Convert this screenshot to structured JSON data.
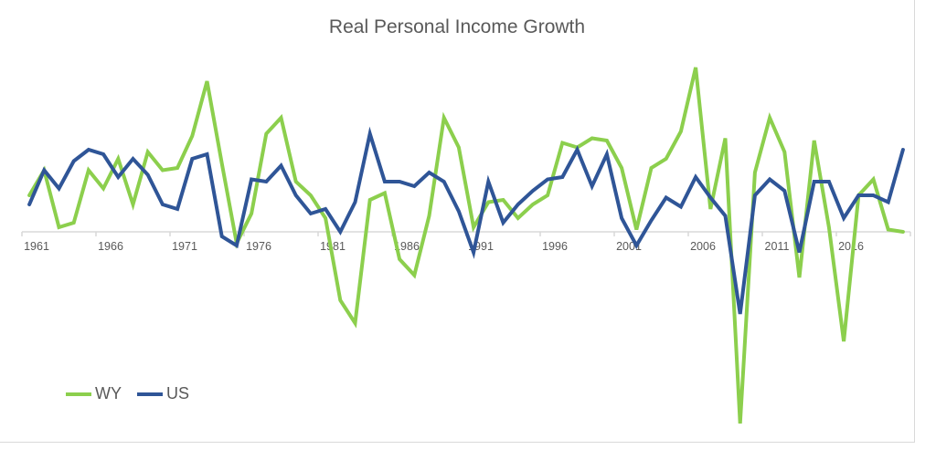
{
  "chart_data": {
    "type": "line",
    "title": "Real Personal Income Growth",
    "xlabel": "",
    "ylabel": "",
    "x": [
      1961,
      1962,
      1963,
      1964,
      1965,
      1966,
      1967,
      1968,
      1969,
      1970,
      1971,
      1972,
      1973,
      1974,
      1975,
      1976,
      1977,
      1978,
      1979,
      1980,
      1981,
      1982,
      1983,
      1984,
      1985,
      1986,
      1987,
      1988,
      1989,
      1990,
      1991,
      1992,
      1993,
      1994,
      1995,
      1996,
      1997,
      1998,
      1999,
      2000,
      2001,
      2002,
      2003,
      2004,
      2005,
      2006,
      2007,
      2008,
      2009,
      2010,
      2011,
      2012,
      2013,
      2014,
      2015,
      2016,
      2017,
      2018,
      2019,
      2020
    ],
    "x_tick_labels": [
      "1961",
      "1966",
      "1971",
      "1976",
      "1981",
      "1986",
      "1991",
      "1996",
      "2001",
      "2006",
      "2011",
      "2016"
    ],
    "ylim": [
      -9,
      8
    ],
    "y_axis_labels_shown": false,
    "grid": false,
    "legend_position": "bottom-left",
    "series": [
      {
        "name": "WY",
        "color": "#8ccf4d",
        "values": [
          1.6,
          2.7,
          0.2,
          0.4,
          2.7,
          1.9,
          3.2,
          1.2,
          3.5,
          2.7,
          2.8,
          4.2,
          6.6,
          3.0,
          -0.5,
          0.8,
          4.3,
          5.0,
          2.2,
          1.6,
          0.6,
          -3.0,
          -4.0,
          1.4,
          1.7,
          -1.2,
          -1.9,
          0.7,
          5.0,
          3.7,
          0.2,
          1.3,
          1.4,
          0.6,
          1.2,
          1.6,
          3.9,
          3.7,
          4.1,
          4.0,
          2.8,
          0.1,
          2.8,
          3.2,
          4.4,
          7.2,
          1.0,
          4.1,
          -8.4,
          2.6,
          5.0,
          3.5,
          -2.0,
          4.0,
          0.2,
          -4.8,
          1.6,
          2.3,
          0.1,
          0.0
        ]
      },
      {
        "name": "US",
        "color": "#2f5597",
        "values": [
          1.2,
          2.7,
          1.9,
          3.1,
          3.6,
          3.4,
          2.4,
          3.2,
          2.5,
          1.2,
          1.0,
          3.2,
          3.4,
          -0.2,
          -0.6,
          2.3,
          2.2,
          2.9,
          1.6,
          0.8,
          1.0,
          0.0,
          1.3,
          4.3,
          2.2,
          2.2,
          2.0,
          2.6,
          2.2,
          0.9,
          -0.9,
          2.2,
          0.4,
          1.2,
          1.8,
          2.3,
          2.4,
          3.6,
          2.0,
          3.4,
          0.6,
          -0.6,
          0.5,
          1.5,
          1.1,
          2.4,
          1.5,
          0.7,
          -3.6,
          1.6,
          2.3,
          1.8,
          -0.9,
          2.2,
          2.2,
          0.6,
          1.6,
          1.6,
          1.3,
          3.6
        ]
      }
    ]
  }
}
